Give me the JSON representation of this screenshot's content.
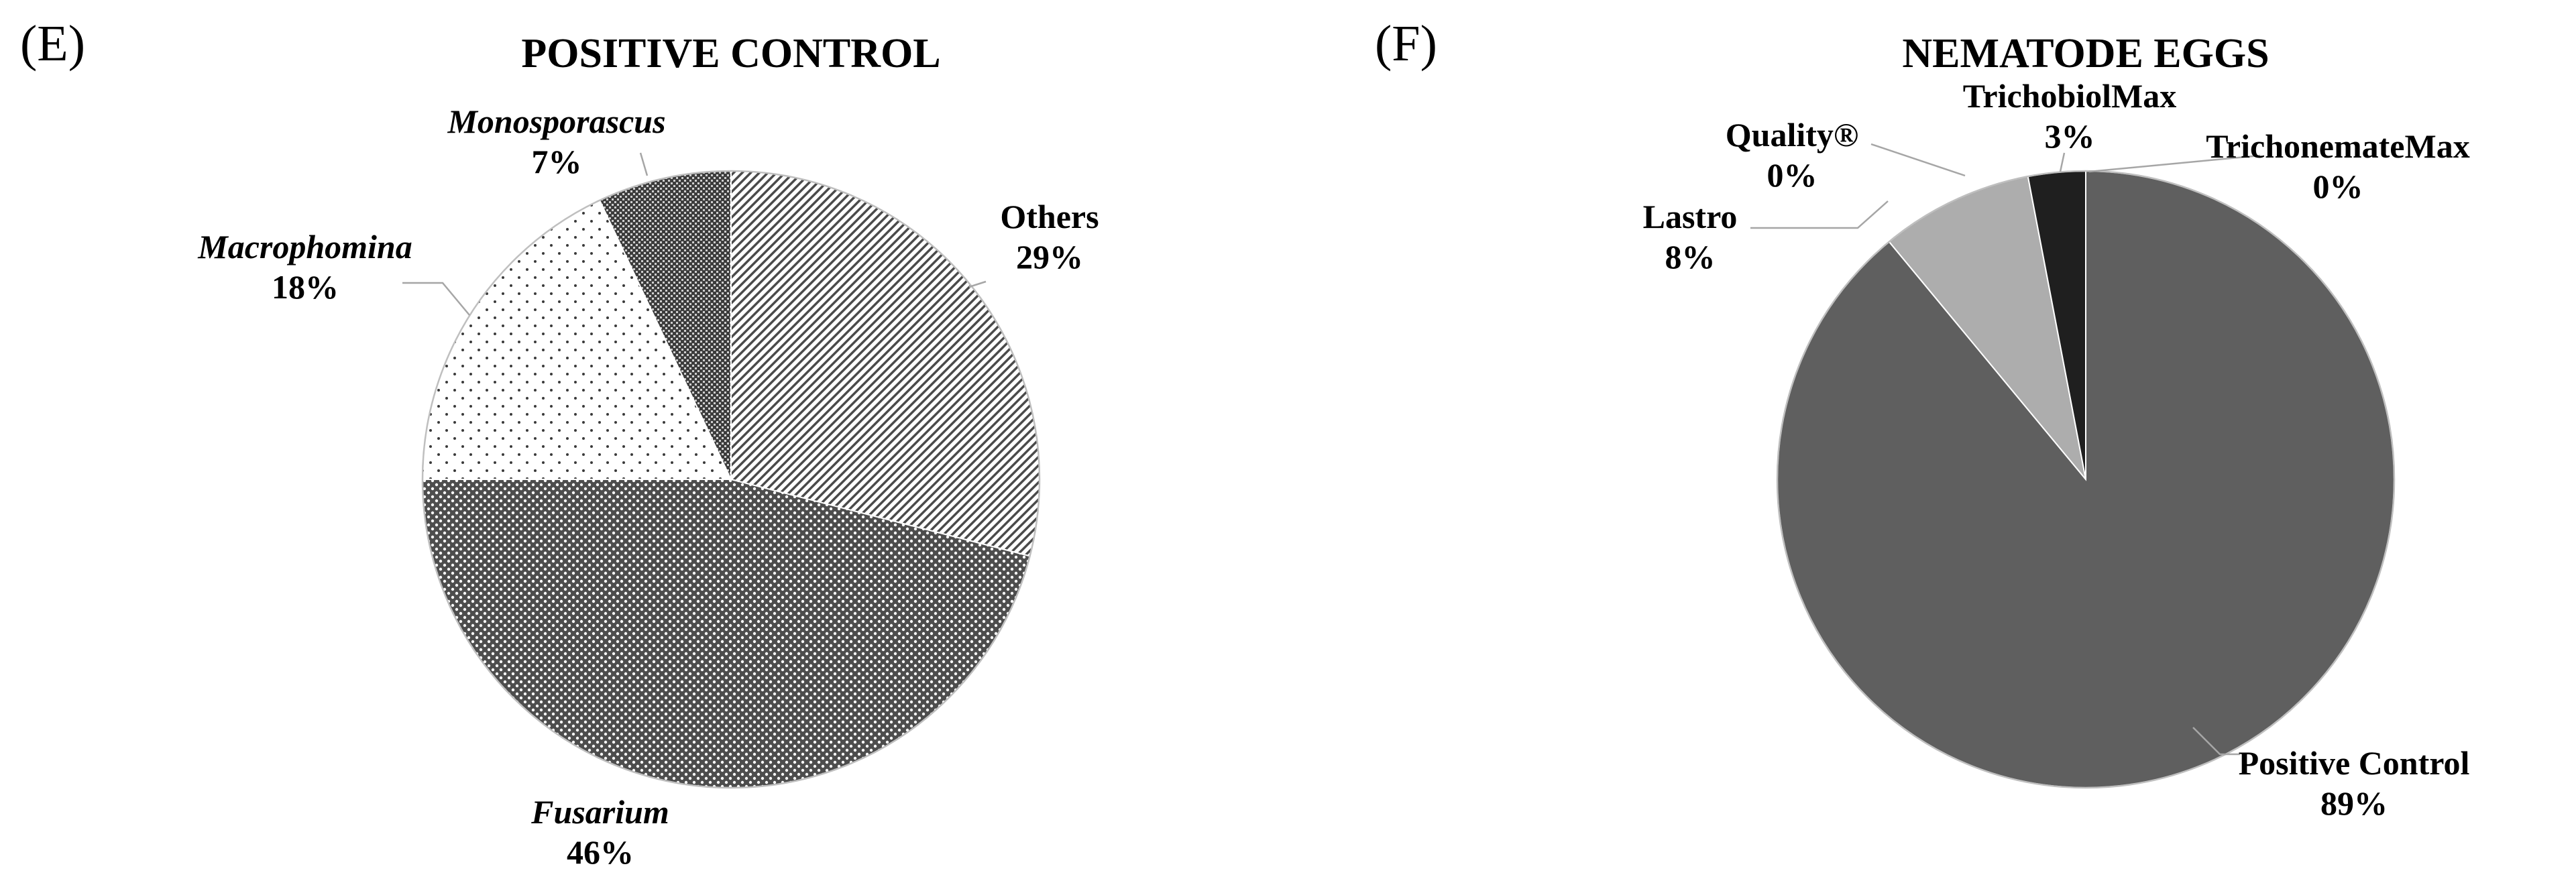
{
  "chart_data": [
    {
      "type": "pie",
      "panel_label": "(E)",
      "title": "POSITIVE CONTROL",
      "slices": [
        {
          "name": "Others",
          "value": 29,
          "label": "29%",
          "italic": false,
          "fill": "diagonal-hatch"
        },
        {
          "name": "Fusarium",
          "value": 46,
          "label": "46%",
          "italic": true,
          "fill": "dense-dots"
        },
        {
          "name": "Macrophomina",
          "value": 18,
          "label": "18%",
          "italic": true,
          "fill": "sparse-dots"
        },
        {
          "name": "Monosporascus",
          "value": 7,
          "label": "7%",
          "italic": true,
          "fill": "cross-hatch"
        }
      ]
    },
    {
      "type": "pie",
      "panel_label": "(F)",
      "title": "NEMATODE EGGS",
      "slices": [
        {
          "name": "Positive Control",
          "value": 89,
          "label": "89%",
          "color": "#5f5f5f"
        },
        {
          "name": "Lastro",
          "value": 8,
          "label": "8%",
          "color": "#adadad"
        },
        {
          "name": "Quality®",
          "value": 0,
          "label": "0%",
          "color": "#d9d9d9"
        },
        {
          "name": "TrichobiolMax",
          "value": 3,
          "label": "3%",
          "color": "#1f1f1f"
        },
        {
          "name": "TrichonemateMax",
          "value": 0,
          "label": "0%",
          "color": "#000000"
        }
      ]
    }
  ]
}
